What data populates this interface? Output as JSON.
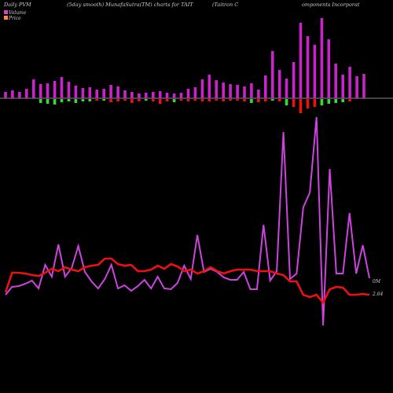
{
  "header": {
    "left": "Daily PVM",
    "mid": "(5day smooth) MunafaSutra(TM) charts for TAIT",
    "right1": "(Taitron  C",
    "right2": "omponents Incorporat"
  },
  "legend": [
    {
      "label": "Volume",
      "color": "#cc44cc"
    },
    {
      "label": "Price",
      "color": "#ff8844"
    }
  ],
  "colors": {
    "volume": "#cc22cc",
    "up": "#33dd33",
    "down": "#ee1111",
    "line_magenta": "#cc44dd",
    "line_red": "#ee1111"
  },
  "chart_data": {
    "type": "line",
    "right_labels": [
      "0M",
      "2.64"
    ],
    "volume_bars": [
      8,
      10,
      8,
      12,
      24,
      18,
      19,
      22,
      27,
      21,
      16,
      13,
      14,
      11,
      12,
      17,
      15,
      10,
      8,
      6,
      7,
      8,
      9,
      7,
      6,
      7,
      12,
      14,
      24,
      30,
      23,
      20,
      18,
      17,
      15,
      19,
      11,
      29,
      60,
      36,
      25,
      46,
      96,
      79,
      68,
      102,
      75,
      44,
      30,
      40,
      28,
      31
    ],
    "pn_bars": [
      0,
      0,
      0,
      0,
      0,
      -5,
      -6,
      -7,
      -4,
      -3,
      -5,
      -3,
      -3,
      -2,
      -2,
      -4,
      -3,
      -2,
      -5,
      -3,
      -2,
      -3,
      -6,
      -3,
      -4,
      -2,
      -3,
      -2,
      -3,
      -3,
      -2,
      -3,
      -2,
      -2,
      -3,
      -5,
      -4,
      -3,
      -2,
      -3,
      -8,
      -10,
      -18,
      -12,
      -10,
      -8,
      -6,
      -5,
      -4,
      -3,
      0,
      0
    ],
    "pn_up_indices": [
      5,
      6,
      7,
      8,
      9,
      10,
      11,
      12,
      14,
      20,
      24,
      35,
      38,
      40,
      45,
      46,
      47,
      48
    ],
    "line1_magenta": [
      375,
      365,
      364,
      361,
      357,
      367,
      337,
      352,
      311,
      352,
      341,
      313,
      346,
      358,
      367,
      355,
      337,
      367,
      363,
      370,
      364,
      356,
      367,
      352,
      367,
      368,
      360,
      338,
      355,
      299,
      346,
      342,
      346,
      353,
      356,
      356,
      346,
      368,
      368,
      286,
      357,
      345,
      168,
      355,
      348,
      264,
      245,
      149,
      414,
      215,
      348,
      348,
      271,
      348,
      312,
      354
    ],
    "line2_red": [
      372,
      347,
      347,
      348,
      350,
      351,
      347,
      342,
      345,
      340,
      343,
      345,
      340,
      338,
      337,
      329,
      329,
      336,
      338,
      337,
      345,
      345,
      343,
      338,
      342,
      336,
      339,
      345,
      343,
      348,
      345,
      340,
      345,
      348,
      345,
      343,
      343,
      343,
      345,
      345,
      345,
      348,
      350,
      358,
      358,
      375,
      378,
      375,
      385,
      368,
      365,
      366,
      375,
      375,
      374,
      375
    ]
  }
}
